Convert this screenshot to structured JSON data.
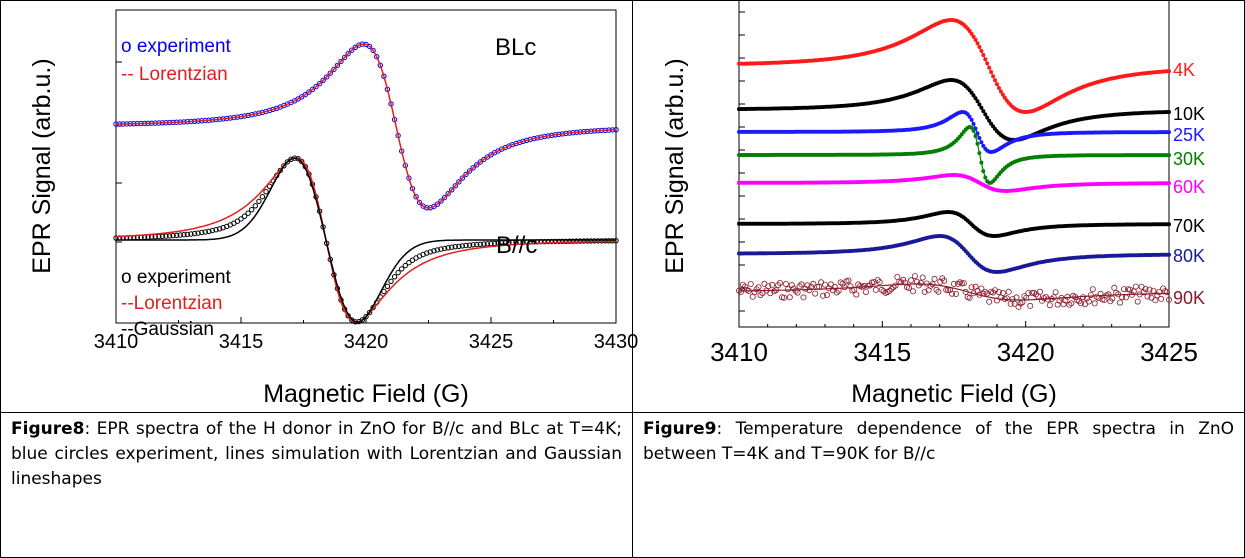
{
  "figure8": {
    "caption_label": "Figure8",
    "caption_text": ":  EPR spectra of the H donor in ZnO for B//c and BLc at T=4K; blue circles experiment, lines simulation with Lorentzian and Gaussian lineshapes",
    "chart_data": {
      "type": "line",
      "xlabel": "Magnetic Field (G)",
      "ylabel": "EPR Signal (arb.u.)",
      "xlim": [
        3410,
        3430
      ],
      "xticks": [
        "3410",
        "3415",
        "3420",
        "3425",
        "3430"
      ],
      "panels": [
        {
          "label": "BLc",
          "legend": [
            "o experiment",
            "-- Lorentzian"
          ],
          "center": 3421.2,
          "halfwidth": 1.3,
          "series": [
            {
              "name": "o experiment",
              "color": "#0000ee",
              "style": "circles"
            },
            {
              "name": "-- Lorentzian",
              "color": "#e0201e",
              "style": "line"
            }
          ]
        },
        {
          "label": "B//c",
          "legend": [
            "o experiment",
            "--Lorentzian",
            "--Gaussian"
          ],
          "center": 3418.4,
          "halfwidth": 1.2,
          "series": [
            {
              "name": "o experiment",
              "color": "#000000",
              "style": "circles"
            },
            {
              "name": "--Lorentzian",
              "color": "#e0201e",
              "style": "line"
            },
            {
              "name": "--Gaussian",
              "color": "#000000",
              "style": "line"
            }
          ]
        }
      ]
    }
  },
  "figure9": {
    "caption_label": "Figure9",
    "caption_text": ": Temperature dependence of the EPR spectra in ZnO between T=4K and T=90K for B//c",
    "chart_data": {
      "type": "line",
      "xlabel": "Magnetic Field (G)",
      "ylabel": "EPR Signal (arb.u.)",
      "xlim": [
        3410,
        3425
      ],
      "xticks": [
        "3410",
        "3415",
        "3420",
        "3425"
      ],
      "series": [
        {
          "name": "4K",
          "color": "#ff1a1a",
          "center": 3418.7,
          "halfwidth": 1.3
        },
        {
          "name": "10K",
          "color": "#000000",
          "center": 3418.5,
          "halfwidth": 1.1
        },
        {
          "name": "25K",
          "color": "#1a1aff",
          "center": 3418.3,
          "halfwidth": 0.5
        },
        {
          "name": "30K",
          "color": "#008000",
          "center": 3418.4,
          "halfwidth": 0.35
        },
        {
          "name": "60K",
          "color": "#ff00ff",
          "center": 3418.4,
          "halfwidth": 0.9
        },
        {
          "name": "70K",
          "color": "#000000",
          "center": 3418.1,
          "halfwidth": 0.8
        },
        {
          "name": "80K",
          "color": "#1a1a99",
          "center": 3418.0,
          "halfwidth": 1.0
        },
        {
          "name": "90K",
          "color": "#8b1a2a",
          "center": 3418.0,
          "halfwidth": 1.8
        }
      ]
    }
  }
}
